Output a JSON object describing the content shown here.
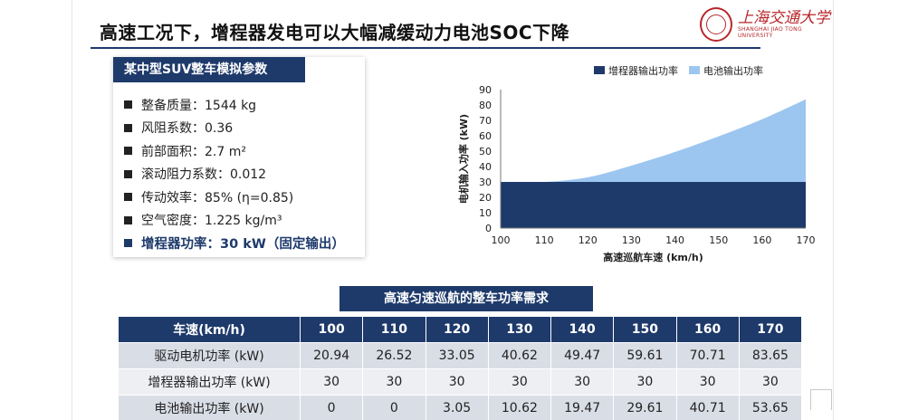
{
  "slide": {
    "title": "高速工况下，增程器发电可以大幅减缓动力电池SOC下降",
    "logo": {
      "cn": "上海交通大学",
      "en": "SHANGHAI JIAO TONG UNIVERSITY"
    }
  },
  "params": {
    "heading": "某中型SUV整车模拟参数",
    "items": [
      "整备质量：1544 kg",
      "风阻系数：0.36",
      "前部面积：2.7 m²",
      "滚动阻力系数：0.012",
      "传动效率：85% (η=0.85)",
      "空气密度：1.225 kg/m³"
    ],
    "highlight": "增程器功率：30 kW（固定输出）"
  },
  "chart_data": {
    "type": "area",
    "stacked": true,
    "x": [
      100,
      110,
      120,
      130,
      140,
      150,
      160,
      170
    ],
    "series": [
      {
        "name": "增程器输出功率",
        "color": "#1e3a6b",
        "values": [
          30,
          30,
          30,
          30,
          30,
          30,
          30,
          30
        ]
      },
      {
        "name": "电池输出功率",
        "color": "#9cc6f0",
        "values": [
          0,
          0,
          3.05,
          10.62,
          19.47,
          29.61,
          40.71,
          53.65
        ]
      }
    ],
    "xlabel": "高速巡航车速 (km/h)",
    "ylabel": "电机输入功率 (kW)",
    "xlim": [
      100,
      170
    ],
    "ylim": [
      0,
      90
    ],
    "xticks": [
      100,
      110,
      120,
      130,
      140,
      150,
      160,
      170
    ],
    "yticks": [
      0,
      10,
      20,
      30,
      40,
      50,
      60,
      70,
      80,
      90
    ],
    "legend_position": "top",
    "grid": false
  },
  "table": {
    "title": "高速匀速巡航的整车功率需求",
    "header": [
      "车速(km/h)",
      "100",
      "110",
      "120",
      "130",
      "140",
      "150",
      "160",
      "170"
    ],
    "rows": [
      [
        "驱动电机功率 (kW)",
        "20.94",
        "26.52",
        "33.05",
        "40.62",
        "49.47",
        "59.61",
        "70.71",
        "83.65"
      ],
      [
        "增程器输出功率 (kW)",
        "30",
        "30",
        "30",
        "30",
        "30",
        "30",
        "30",
        "30"
      ],
      [
        "电池输出功率 (kW)",
        "0",
        "0",
        "3.05",
        "10.62",
        "19.47",
        "29.61",
        "40.71",
        "53.65"
      ]
    ]
  }
}
